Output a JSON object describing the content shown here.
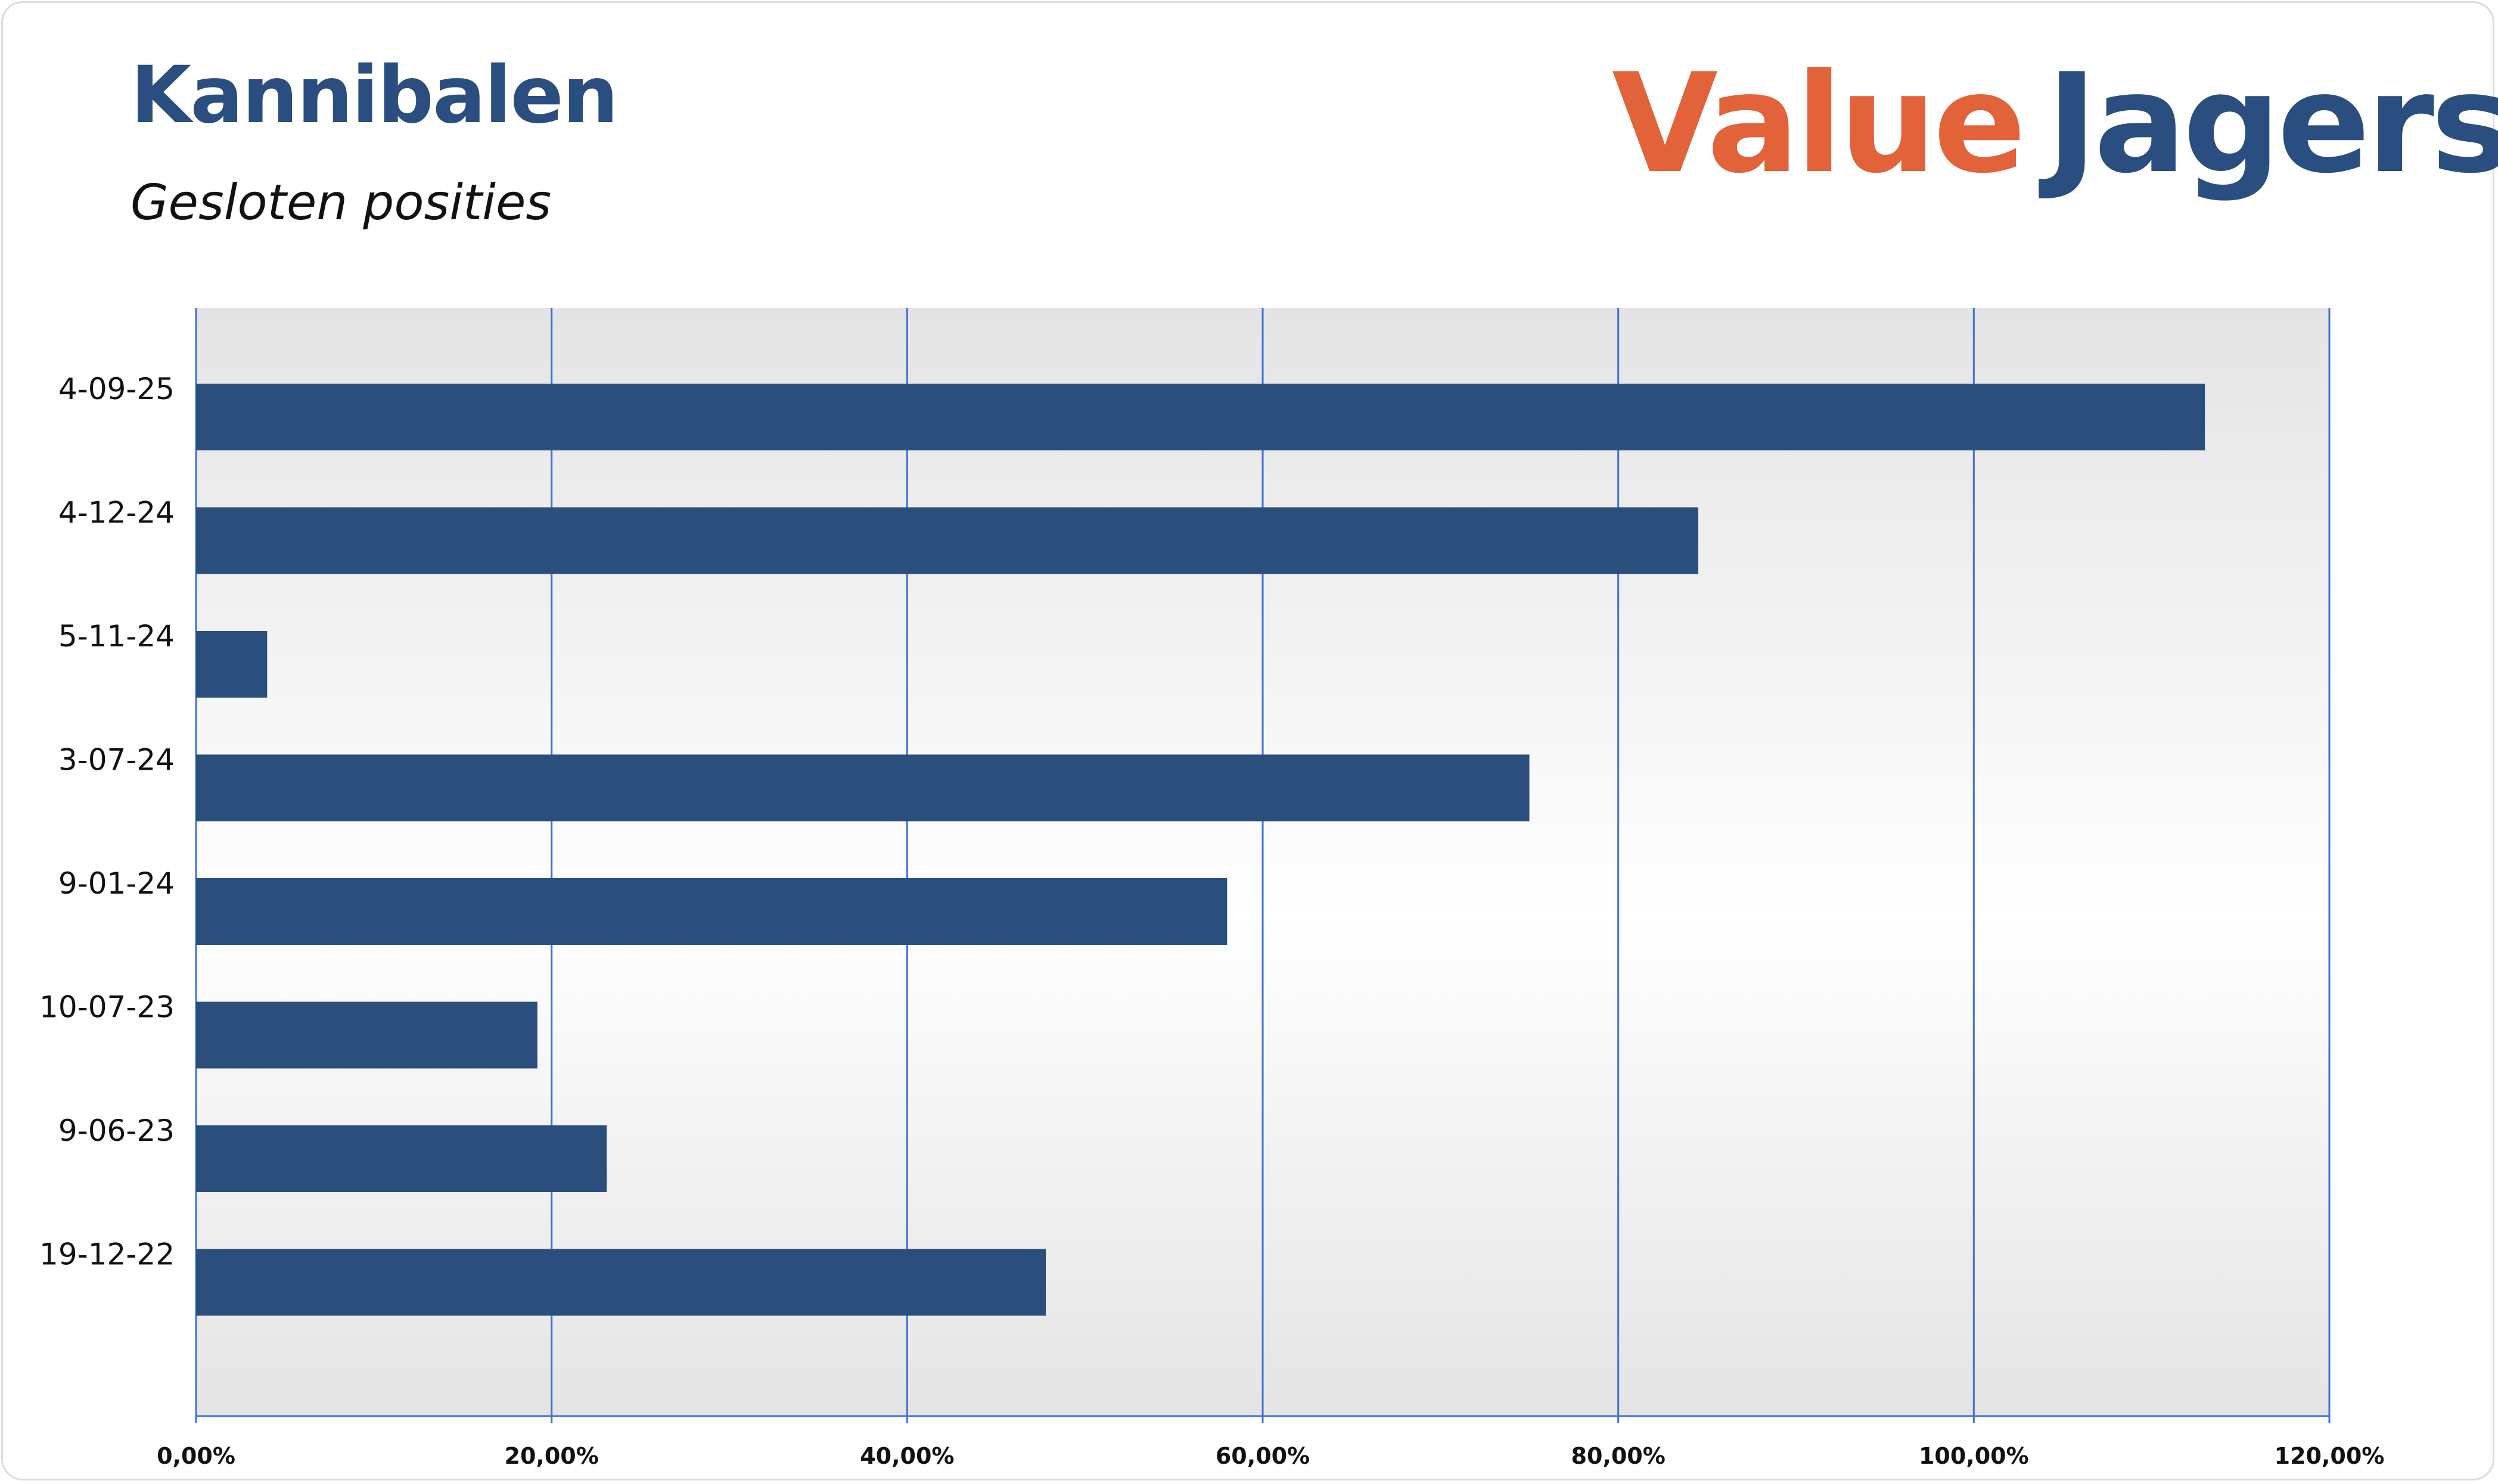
{
  "header": {
    "title": "Kannibalen",
    "subtitle": "Gesloten posities"
  },
  "logo": {
    "word1": "Value",
    "word2": "Jagers",
    "color1": "#e2623a",
    "color2": "#2a4e7f"
  },
  "colors": {
    "bar": "#2b4f7c",
    "grid": "#3f6fd8",
    "plot_bg_edge": "#e4e4e4",
    "plot_bg_center": "#ffffff"
  },
  "chart_data": {
    "type": "bar",
    "orientation": "horizontal",
    "categories": [
      "4-09-25",
      "4-12-24",
      "5-11-24",
      "3-07-24",
      "9-01-24",
      "10-07-23",
      "9-06-23",
      "19-12-22"
    ],
    "values": [
      113.0,
      84.5,
      4.0,
      75.0,
      58.0,
      19.2,
      23.1,
      47.8
    ],
    "xlim": [
      0,
      120
    ],
    "xticks": [
      "0,00%",
      "20,00%",
      "40,00%",
      "60,00%",
      "80,00%",
      "100,00%",
      "120,00%"
    ],
    "grid": true,
    "legend": "none",
    "xlabel": "",
    "ylabel": ""
  }
}
